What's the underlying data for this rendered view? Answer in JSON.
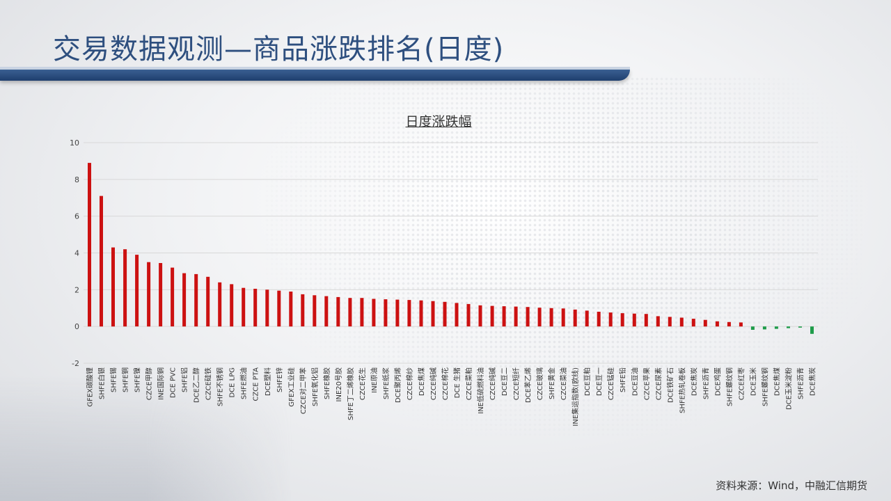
{
  "page": {
    "title": "交易数据观测—商品涨跌排名(日度)",
    "source": "资料来源：Wind，中融汇信期货"
  },
  "colors": {
    "positive": "#cc1111",
    "negative": "#1e9c4a",
    "title": "#2e4f7f",
    "band": "#1f3f6e"
  },
  "chart_data": {
    "type": "bar",
    "title": "日度涨跌幅",
    "ylim": [
      -2,
      10
    ],
    "yticks": [
      -2,
      0,
      2,
      4,
      6,
      8,
      10
    ],
    "grid": true,
    "legend": "none",
    "categories": [
      "GFEX碳酸锂",
      "SHFE白银",
      "SHFE锡",
      "SHFE铜",
      "SHFE镍",
      "CZCE甲醇",
      "INE国际铜",
      "DCE PVC",
      "SHFE铝",
      "DCE乙二醇",
      "CZCE硅铁",
      "SHFE不锈钢",
      "DCE LPG",
      "SHFE燃油",
      "CZCE PTA",
      "DCE塑料",
      "SHFE锌",
      "GFEX工业硅",
      "CZCE对二甲苯",
      "SHFE氧化铝",
      "SHFE橡胶",
      "INE20号胶",
      "SHFE丁二烯橡胶",
      "CZCE花生",
      "INE原油",
      "SHFE纸浆",
      "DCE聚丙烯",
      "CZCE棉纱",
      "DCE焦煤",
      "CZCE纯碱",
      "CZCE棉花",
      "DCE 生猪",
      "CZCE菜粕",
      "INE低硫燃料油",
      "CZCE纯碱",
      "DCE豆二",
      "CZCE短纤",
      "DCE苯乙烯",
      "CZCE玻璃",
      "SHFE黄金",
      "CZCE菜油",
      "INE集运指数(欧线)",
      "DCE豆粕",
      "DCE豆一",
      "CZCE锰硅",
      "SHFE铅",
      "DCE豆油",
      "CZCE苹果",
      "CZCE尿素",
      "DCE铁矿石",
      "SHFE热轧卷板",
      "DCE焦炭",
      "SHFE沥青",
      "DCE鸡蛋",
      "SHFE螺纹钢",
      "CZCE红枣",
      "DCE玉米",
      "SHFE螺纹钢",
      "DCE焦煤",
      "DCE玉米淀粉",
      "SHFE沥青",
      "DCE焦炭"
    ],
    "values": [
      8.9,
      7.1,
      4.3,
      4.2,
      3.9,
      3.5,
      3.45,
      3.2,
      2.9,
      2.85,
      2.7,
      2.4,
      2.3,
      2.1,
      2.05,
      2.0,
      1.95,
      1.9,
      1.75,
      1.7,
      1.65,
      1.6,
      1.55,
      1.55,
      1.5,
      1.48,
      1.46,
      1.44,
      1.42,
      1.38,
      1.34,
      1.28,
      1.22,
      1.15,
      1.12,
      1.1,
      1.08,
      1.06,
      1.02,
      1.0,
      0.98,
      0.92,
      0.86,
      0.8,
      0.76,
      0.72,
      0.7,
      0.68,
      0.56,
      0.52,
      0.48,
      0.42,
      0.36,
      0.28,
      0.24,
      0.22,
      -0.18,
      -0.16,
      -0.13,
      -0.09,
      -0.06,
      -0.4
    ]
  }
}
